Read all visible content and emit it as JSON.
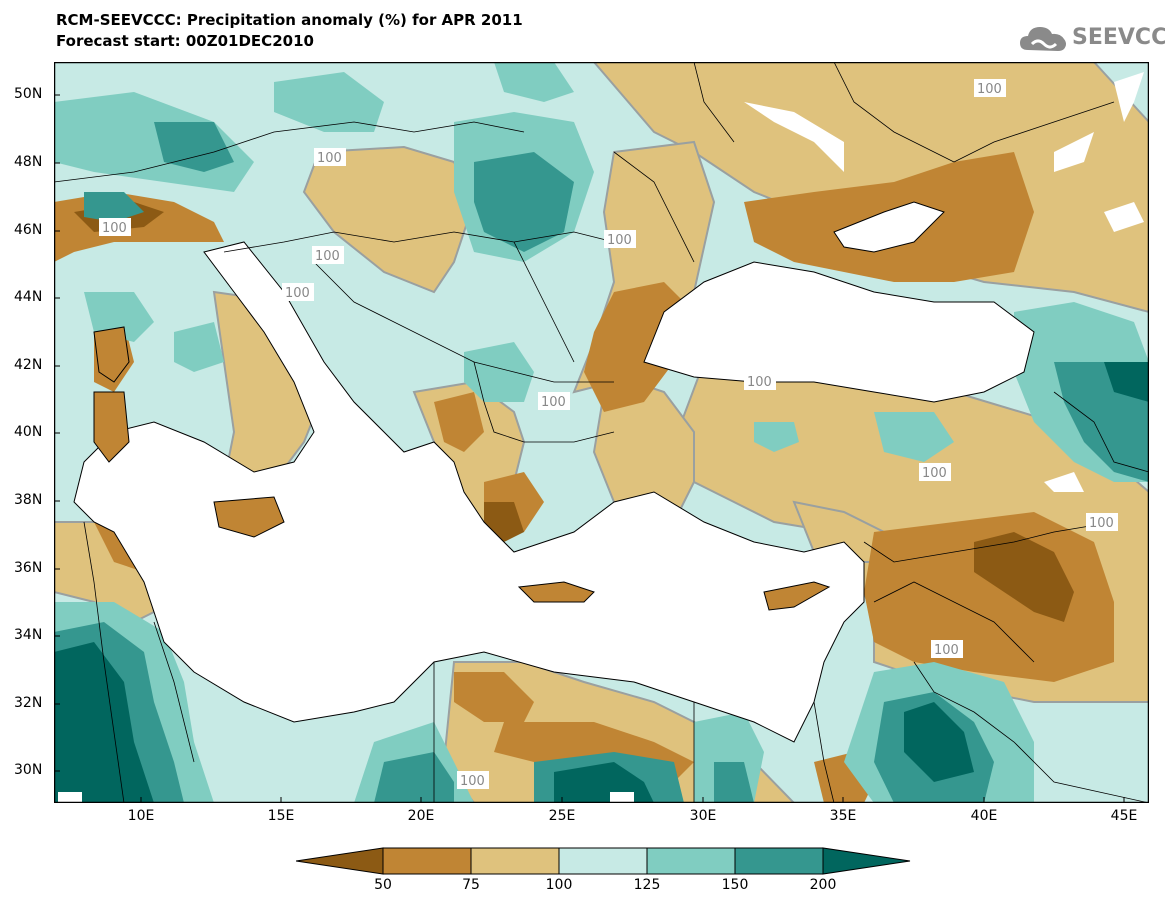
{
  "title_line1": "RCM-SEEVCCC: Precipitation anomaly (%) for APR 2011",
  "title_line2": "Forecast start: 00Z01DEC2010",
  "logo_text": "SEEVCCC",
  "map": {
    "lat_labels": [
      "50N",
      "48N",
      "46N",
      "44N",
      "42N",
      "40N",
      "38N",
      "36N",
      "34N",
      "32N",
      "30N"
    ],
    "lon_labels": [
      "10E",
      "15E",
      "20E",
      "25E",
      "30E",
      "35E",
      "40E",
      "45E"
    ],
    "contour_labels": [
      "100",
      "100",
      "100",
      "100",
      "100",
      "100",
      "100",
      "100",
      "100",
      "100",
      "100",
      "100"
    ]
  },
  "legend": {
    "ticks": [
      "50",
      "75",
      "100",
      "125",
      "150",
      "200"
    ],
    "colors": [
      "#8c5a14",
      "#c08534",
      "#dfc27d",
      "#c7eae5",
      "#80cdc1",
      "#35978f",
      "#01665e"
    ]
  }
}
